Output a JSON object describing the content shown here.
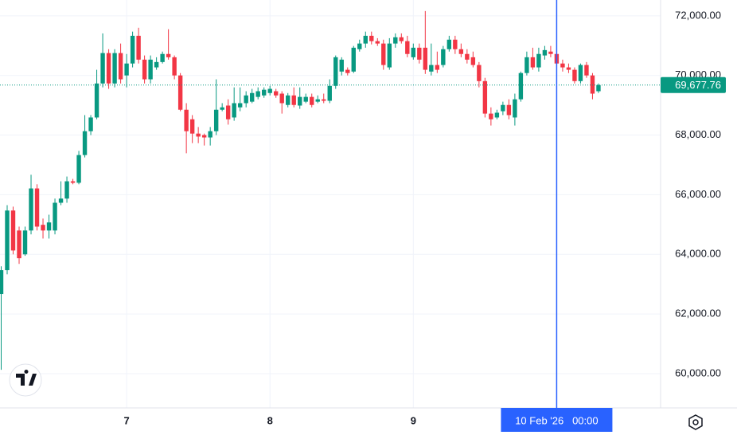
{
  "chart_data": {
    "type": "candlestick",
    "up_color": "#089981",
    "down_color": "#f23645",
    "grid": true,
    "open": [
      62670,
      63470,
      65470,
      64800,
      64000,
      64800,
      66210,
      64990,
      64800,
      64800,
      65730,
      65870,
      66450,
      66400,
      67330,
      68130,
      68590,
      69730,
      70750,
      69730,
      70750,
      70000,
      70400,
      71330,
      70530,
      69870,
      70270,
      70450,
      70720,
      70610,
      70000,
      68850,
      68530,
      68050,
      68000,
      67920,
      68130,
      68850,
      68990,
      68590,
      68930,
      69070,
      69120,
      69280,
      69330,
      69410,
      69470,
      69390,
      69010,
      69330,
      68990,
      69120,
      69280,
      69120,
      69200,
      69150,
      69650,
      70130,
      70190,
      70130,
      70880,
      71070,
      71330,
      71150,
      71070,
      70270,
      71070,
      71280,
      71150,
      70610,
      70930,
      70930,
      70130,
      70350,
      70350,
      70880,
      71200,
      70880,
      70720,
      70610,
      70350,
      69810,
      68720,
      68590,
      68800,
      69010,
      68590,
      69200,
      70080,
      70610,
      70270,
      70670,
      70800,
      70720,
      70400,
      70270,
      70190,
      69810,
      70350,
      70000,
      69470
    ],
    "high": [
      63600,
      65650,
      65600,
      64930,
      64930,
      66670,
      66350,
      65200,
      65330,
      65870,
      66450,
      66610,
      66530,
      67470,
      68670,
      68670,
      70190,
      71410,
      70880,
      70880,
      71070,
      70720,
      71470,
      71600,
      70670,
      70670,
      70610,
      70800,
      71550,
      70670,
      70080,
      69070,
      68670,
      68270,
      68050,
      68270,
      69870,
      69070,
      69200,
      69600,
      69600,
      69470,
      69550,
      69600,
      69600,
      69650,
      69550,
      69470,
      69410,
      69600,
      69600,
      69390,
      69390,
      69330,
      69390,
      69870,
      70670,
      70610,
      70270,
      70990,
      71200,
      71470,
      71470,
      71250,
      71200,
      71250,
      71410,
      71410,
      71330,
      71070,
      71070,
      72160,
      71070,
      70800,
      70990,
      71330,
      71330,
      71070,
      70880,
      70800,
      70450,
      69920,
      68930,
      68850,
      69120,
      69200,
      69390,
      70130,
      70800,
      70930,
      70930,
      70990,
      70990,
      70800,
      70530,
      70400,
      70270,
      70400,
      70450,
      70080,
      69730
    ],
    "low": [
      60130,
      63330,
      64000,
      63680,
      63950,
      64670,
      64800,
      64530,
      64530,
      64670,
      65650,
      65730,
      66350,
      66350,
      67250,
      68000,
      68530,
      69600,
      69550,
      69600,
      69730,
      69600,
      70270,
      70400,
      69730,
      69730,
      70190,
      70400,
      70530,
      69870,
      68800,
      67390,
      67730,
      67730,
      67650,
      67650,
      68000,
      68800,
      68350,
      68480,
      68800,
      68930,
      69070,
      69200,
      69250,
      69330,
      69250,
      68720,
      68930,
      68930,
      68880,
      69070,
      68930,
      69070,
      69070,
      69070,
      69550,
      70000,
      70000,
      70080,
      70800,
      70930,
      71040,
      70990,
      70190,
      70190,
      70930,
      71070,
      70610,
      70530,
      70400,
      70050,
      70000,
      70080,
      70270,
      70800,
      70720,
      70610,
      70400,
      70270,
      69600,
      68590,
      68320,
      68530,
      68670,
      68530,
      68320,
      69120,
      70000,
      70190,
      70130,
      70530,
      70610,
      70270,
      70130,
      70080,
      69730,
      69730,
      69920,
      69200,
      69410
    ],
    "close": [
      63470,
      65470,
      64130,
      63870,
      64800,
      66210,
      64930,
      64800,
      65070,
      65730,
      65870,
      66450,
      66400,
      67330,
      68130,
      68590,
      69730,
      70750,
      69730,
      70750,
      69870,
      70400,
      71330,
      70530,
      69870,
      70530,
      70450,
      70720,
      70610,
      70000,
      68850,
      68130,
      68050,
      67950,
      67920,
      68130,
      68850,
      68930,
      68530,
      69070,
      69070,
      69330,
      69410,
      69470,
      69520,
      69550,
      69330,
      69070,
      69330,
      69010,
      69280,
      69280,
      69010,
      69200,
      69150,
      69650,
      70610,
      70530,
      70080,
      70930,
      71070,
      71330,
      71150,
      71070,
      70350,
      71070,
      71280,
      71150,
      70720,
      70930,
      70530,
      70190,
      70350,
      70190,
      70880,
      71200,
      70880,
      70720,
      70530,
      70350,
      69810,
      68720,
      68530,
      68750,
      69010,
      68670,
      69200,
      70080,
      70610,
      70270,
      70720,
      70850,
      70720,
      70400,
      70270,
      70190,
      69810,
      70350,
      70000,
      69390,
      69677.76
    ],
    "xlim": [
      -0.2,
      110.4
    ],
    "xticks": [
      {
        "value": 21,
        "label": "7"
      },
      {
        "value": 45,
        "label": "8"
      },
      {
        "value": 69,
        "label": "9"
      }
    ],
    "ylim": [
      58850,
      72530
    ],
    "yticks": [
      {
        "value": 60000,
        "label": "60,000.00"
      },
      {
        "value": 62000,
        "label": "62,000.00"
      },
      {
        "value": 64000,
        "label": "64,000.00"
      },
      {
        "value": 66000,
        "label": "66,000.00"
      },
      {
        "value": 68000,
        "label": "68,000.00"
      },
      {
        "value": 70000,
        "label": "70,000.00"
      },
      {
        "value": 72000,
        "label": "72,000.00"
      }
    ],
    "last_price": {
      "value": 69677.76,
      "label": "69,677.76"
    },
    "crosshair": {
      "value": 93,
      "label": "10 Feb '26   00:00",
      "color": "#2962ff"
    }
  }
}
